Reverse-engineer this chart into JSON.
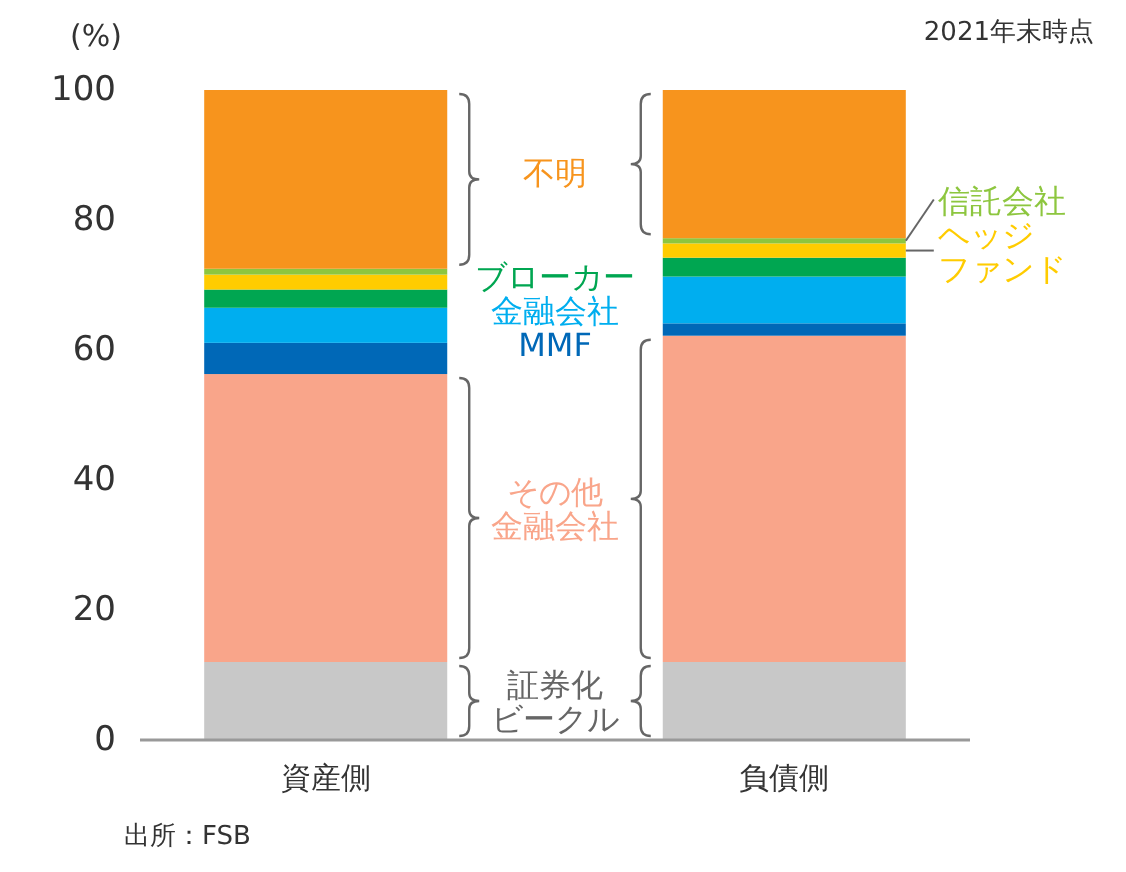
{
  "chart_data": {
    "type": "bar",
    "stacked": true,
    "subtitle": "2021年末時点",
    "ylabel": "(%)",
    "annotations": [
      "出所：FSB"
    ],
    "categories": [
      "資産側",
      "負債側"
    ],
    "ylim": [
      0,
      100
    ],
    "yticks": [
      0,
      20,
      40,
      60,
      80,
      100
    ],
    "grid": false,
    "legend": false,
    "series": [
      {
        "name": "証券化ビークル",
        "color": "#c8c8c8",
        "values": [
          12,
          12
        ]
      },
      {
        "name": "その他金融会社",
        "color": "#f9a58a",
        "values": [
          44.3,
          50.2
        ]
      },
      {
        "name": "MMF",
        "color": "#0068b7",
        "values": [
          4.8,
          1.9
        ]
      },
      {
        "name": "金融会社",
        "color": "#00aeef",
        "values": [
          5.4,
          7.2
        ]
      },
      {
        "name": "ブローカー",
        "color": "#00a651",
        "values": [
          2.8,
          2.9
        ]
      },
      {
        "name": "ヘッジファンド",
        "color": "#ffcc00",
        "values": [
          2.3,
          2.2
        ]
      },
      {
        "name": "信託会社",
        "color": "#8dc63f",
        "values": [
          0.9,
          0.8
        ]
      },
      {
        "name": "不明",
        "color": "#f7941d",
        "values": [
          27.5,
          22.8
        ]
      }
    ]
  }
}
